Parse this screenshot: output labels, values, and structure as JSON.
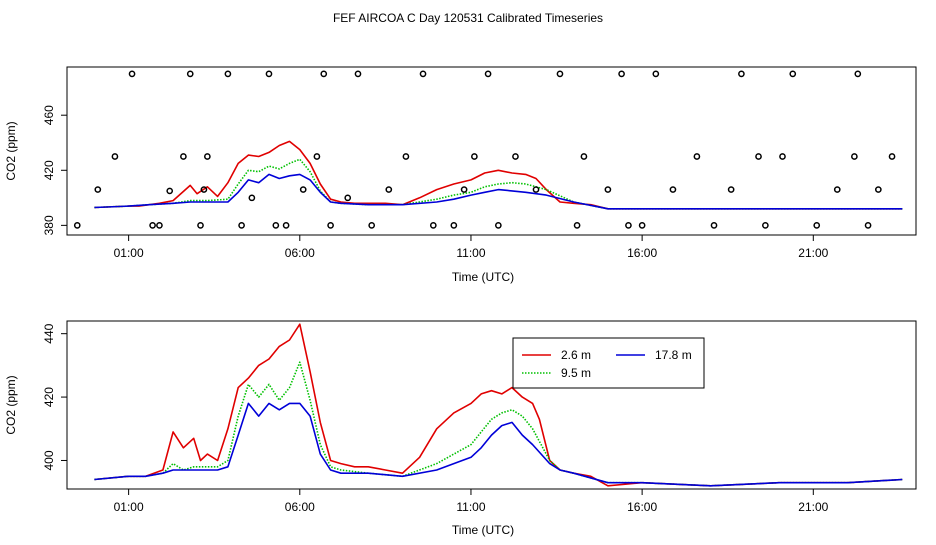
{
  "title": "FEF AIRCOA C  Day 120531  Calibrated Timeseries",
  "colors": {
    "s1": "#e00000",
    "s2": "#00c000",
    "s3": "#0000d8",
    "axis": "#000000"
  },
  "chart_data": [
    {
      "type": "line",
      "xlabel": "Time (UTC)",
      "ylabel": "CO2 (ppm)",
      "xlim": [
        -0.8,
        24.0
      ],
      "ylim": [
        373,
        495
      ],
      "xticks": [
        1,
        6,
        11,
        16,
        21
      ],
      "xtick_labels": [
        "01:00",
        "06:00",
        "11:00",
        "16:00",
        "21:00"
      ],
      "yticks": [
        380,
        420,
        460
      ],
      "ytick_labels": [
        "380",
        "420",
        "460"
      ],
      "series": [
        {
          "name": "2.6 m",
          "color": "#e00000",
          "x": [
            0,
            1,
            1.3,
            1.6,
            1.9,
            2.3,
            2.8,
            3.0,
            3.3,
            3.6,
            3.9,
            4.2,
            4.5,
            4.8,
            5.1,
            5.4,
            5.7,
            6.0,
            6.3,
            6.6,
            6.9,
            7.2,
            7.6,
            8.0,
            8.5,
            9.0,
            9.5,
            10.0,
            10.5,
            11.0,
            11.4,
            11.8,
            12.2,
            12.6,
            12.9,
            13.2,
            13.6,
            14.0,
            14.5,
            15.0,
            16,
            18,
            20,
            22,
            23.6
          ],
          "y": [
            393,
            394,
            394,
            395,
            396,
            398,
            409,
            403,
            408,
            401,
            411,
            425,
            431,
            430,
            433,
            438,
            441,
            435,
            425,
            410,
            399,
            397,
            396,
            396,
            396,
            395,
            400,
            406,
            410,
            413,
            418,
            420,
            418,
            417,
            414,
            406,
            397,
            396,
            395,
            392,
            392,
            392,
            392,
            392,
            392
          ]
        },
        {
          "name": "9.5 m",
          "color": "#00c000",
          "x": [
            0,
            1,
            1.6,
            2.3,
            2.8,
            3.3,
            3.9,
            4.2,
            4.5,
            4.8,
            5.1,
            5.4,
            5.7,
            6.0,
            6.3,
            6.6,
            6.9,
            7.2,
            8.0,
            9.0,
            10.0,
            10.5,
            11.0,
            11.4,
            11.8,
            12.2,
            12.6,
            13.2,
            14.0,
            15.0,
            16,
            18,
            20,
            22,
            23.6
          ],
          "y": [
            393,
            394,
            395,
            396,
            398,
            398,
            399,
            410,
            420,
            419,
            423,
            421,
            425,
            428,
            419,
            405,
            397,
            396,
            395,
            395,
            399,
            402,
            404,
            408,
            410,
            411,
            410,
            406,
            397,
            392,
            392,
            392,
            392,
            392,
            392
          ]
        },
        {
          "name": "17.8 m",
          "color": "#0000d8",
          "x": [
            0,
            1,
            1.6,
            2.3,
            2.8,
            3.3,
            3.9,
            4.2,
            4.5,
            4.8,
            5.1,
            5.4,
            5.7,
            6.0,
            6.3,
            6.6,
            6.9,
            7.2,
            8.0,
            9.0,
            10.0,
            10.5,
            11.0,
            11.4,
            11.8,
            12.2,
            12.6,
            13.2,
            14.0,
            15.0,
            16,
            18,
            20,
            22,
            23.6
          ],
          "y": [
            393,
            394,
            395,
            396,
            397,
            397,
            397,
            404,
            413,
            411,
            417,
            414,
            416,
            417,
            413,
            404,
            397,
            396,
            395,
            395,
            397,
            399,
            402,
            404,
            406,
            405,
            404,
            402,
            397,
            392,
            392,
            392,
            392,
            392,
            392
          ]
        }
      ],
      "points": {
        "x": [
          -0.5,
          0.1,
          0.6,
          1.1,
          1.7,
          1.9,
          2.2,
          2.6,
          2.8,
          3.1,
          3.2,
          3.3,
          3.9,
          4.3,
          4.6,
          5.1,
          5.3,
          5.6,
          6.1,
          6.5,
          6.7,
          6.9,
          7.4,
          7.7,
          8.1,
          8.6,
          9.1,
          9.6,
          9.9,
          10.5,
          10.8,
          11.1,
          11.5,
          11.8,
          12.3,
          12.9,
          13.6,
          14.1,
          14.3,
          15.0,
          15.4,
          15.6,
          16.0,
          16.4,
          16.9,
          17.6,
          18.1,
          18.6,
          18.9,
          19.4,
          19.6,
          20.1,
          20.4,
          21.1,
          21.7,
          22.2,
          22.3,
          22.6,
          22.9,
          23.3
        ],
        "y": [
          380,
          406,
          430,
          490,
          380,
          380,
          405,
          430,
          490,
          380,
          406,
          430,
          490,
          380,
          400,
          490,
          380,
          380,
          406,
          430,
          490,
          380,
          400,
          490,
          380,
          406,
          430,
          490,
          380,
          380,
          406,
          430,
          490,
          380,
          430,
          406,
          490,
          380,
          430,
          406,
          490,
          380,
          380,
          490,
          406,
          430,
          380,
          406,
          490,
          430,
          380,
          430,
          490,
          380,
          406,
          430,
          490,
          380,
          406,
          430
        ]
      }
    },
    {
      "type": "line",
      "xlabel": "Time (UTC)",
      "ylabel": "CO2 (ppm)",
      "xlim": [
        -0.8,
        24.0
      ],
      "ylim": [
        391,
        444
      ],
      "xticks": [
        1,
        6,
        11,
        16,
        21
      ],
      "xtick_labels": [
        "01:00",
        "06:00",
        "11:00",
        "16:00",
        "21:00"
      ],
      "yticks": [
        400,
        420,
        440
      ],
      "ytick_labels": [
        "400",
        "420",
        "440"
      ],
      "legend": {
        "position": "top-right",
        "entries": [
          "2.6 m",
          "9.5 m",
          "17.8 m"
        ]
      },
      "series": [
        {
          "name": "2.6 m",
          "color": "#e00000",
          "x": [
            0,
            1,
            1.5,
            2.0,
            2.3,
            2.6,
            2.9,
            3.1,
            3.3,
            3.6,
            3.9,
            4.2,
            4.5,
            4.8,
            5.1,
            5.4,
            5.7,
            6.0,
            6.3,
            6.6,
            6.9,
            7.2,
            7.6,
            8.0,
            8.5,
            9.0,
            9.5,
            10.0,
            10.5,
            11.0,
            11.3,
            11.6,
            11.9,
            12.2,
            12.5,
            12.8,
            13.0,
            13.3,
            13.6,
            14.0,
            14.5,
            15.0,
            16,
            18,
            20,
            22,
            23.6
          ],
          "y": [
            394,
            395,
            395,
            397,
            409,
            404,
            407,
            400,
            402,
            400,
            410,
            423,
            426,
            430,
            432,
            436,
            438,
            443,
            428,
            412,
            400,
            399,
            398,
            398,
            397,
            396,
            401,
            410,
            415,
            418,
            421,
            422,
            421,
            423,
            420,
            418,
            413,
            400,
            397,
            396,
            395,
            392,
            393,
            392,
            393,
            393,
            394
          ]
        },
        {
          "name": "9.5 m",
          "color": "#00c000",
          "x": [
            0,
            1,
            1.5,
            2.0,
            2.3,
            2.6,
            2.9,
            3.3,
            3.6,
            3.9,
            4.2,
            4.5,
            4.8,
            5.1,
            5.4,
            5.7,
            6.0,
            6.3,
            6.6,
            6.9,
            7.2,
            8.0,
            9.0,
            10.0,
            10.5,
            11.0,
            11.3,
            11.6,
            11.9,
            12.2,
            12.5,
            12.8,
            13.3,
            13.6,
            14.0,
            15.0,
            16,
            18,
            20,
            22,
            23.6
          ],
          "y": [
            394,
            395,
            395,
            396,
            399,
            397,
            398,
            398,
            398,
            400,
            414,
            424,
            420,
            424,
            419,
            423,
            431,
            419,
            405,
            398,
            397,
            396,
            395,
            399,
            402,
            405,
            409,
            413,
            415,
            416,
            414,
            410,
            400,
            397,
            396,
            393,
            393,
            392,
            393,
            393,
            394
          ]
        },
        {
          "name": "17.8 m",
          "color": "#0000d8",
          "x": [
            0,
            1,
            1.5,
            2.0,
            2.3,
            2.6,
            2.9,
            3.3,
            3.6,
            3.9,
            4.2,
            4.5,
            4.8,
            5.1,
            5.4,
            5.7,
            6.0,
            6.3,
            6.6,
            6.9,
            7.2,
            8.0,
            9.0,
            10.0,
            10.5,
            11.0,
            11.3,
            11.6,
            11.9,
            12.2,
            12.5,
            12.8,
            13.3,
            13.6,
            14.0,
            15.0,
            16,
            18,
            20,
            22,
            23.6
          ],
          "y": [
            394,
            395,
            395,
            396,
            397,
            397,
            397,
            397,
            397,
            398,
            408,
            418,
            414,
            418,
            416,
            418,
            418,
            414,
            402,
            397,
            396,
            396,
            395,
            397,
            399,
            401,
            404,
            408,
            411,
            412,
            408,
            405,
            399,
            397,
            396,
            393,
            393,
            392,
            393,
            393,
            394
          ]
        }
      ]
    }
  ]
}
